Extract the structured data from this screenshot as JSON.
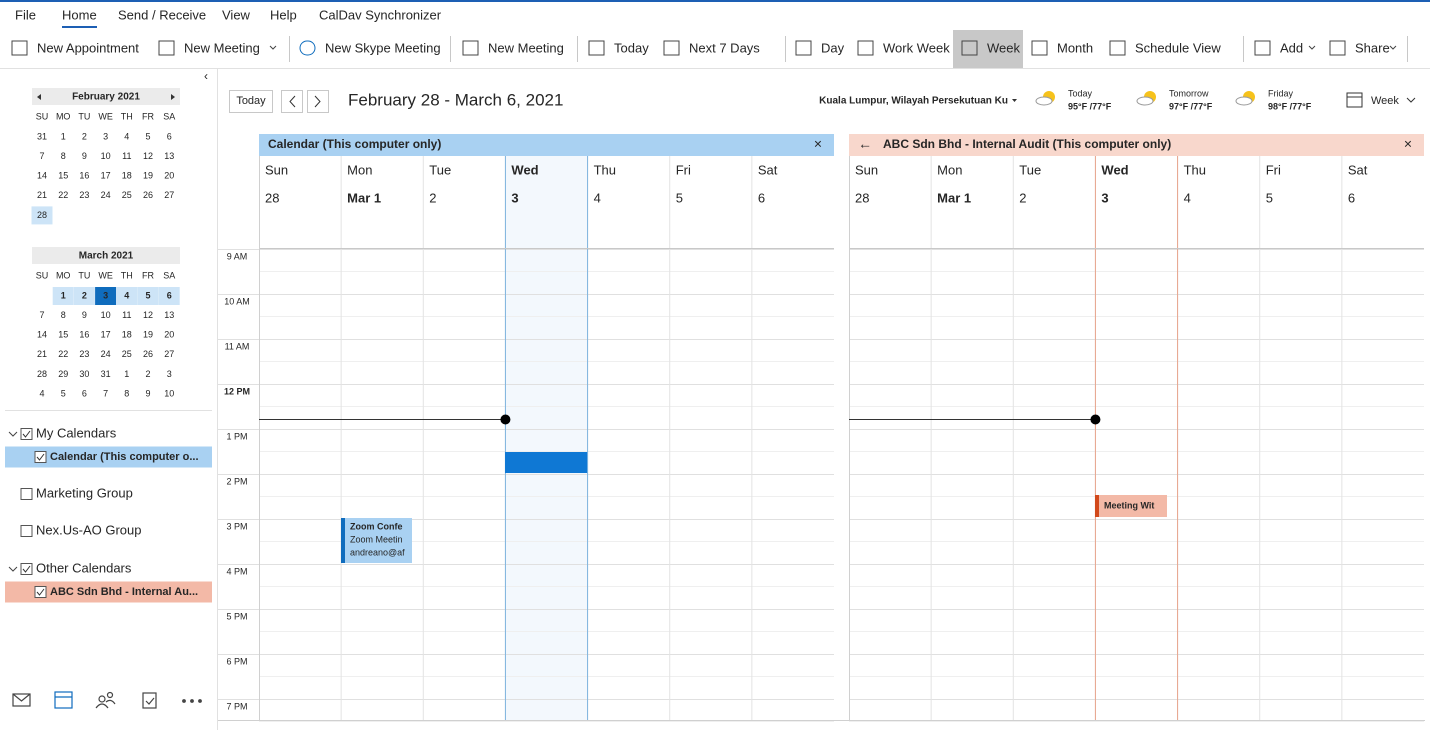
{
  "menu": {
    "tabs": [
      "File",
      "Home",
      "Send / Receive",
      "View",
      "Help",
      "CalDav Synchronizer"
    ]
  },
  "ribbon": {
    "buttons": [
      "New Appointment",
      "New Meeting",
      "New Skype Meeting",
      "New Meeting",
      "Today",
      "Next 7 Days",
      "Day",
      "Work Week",
      "Week",
      "Month",
      "Schedule View",
      "Add",
      "Share"
    ]
  },
  "mini_calendars": [
    {
      "title": "February 2021",
      "weekdays": [
        "SU",
        "MO",
        "TU",
        "WE",
        "TH",
        "FR",
        "SA"
      ],
      "weeks": [
        [
          31,
          1,
          2,
          3,
          4,
          5,
          6
        ],
        [
          7,
          8,
          9,
          10,
          11,
          12,
          13
        ],
        [
          14,
          15,
          16,
          17,
          18,
          19,
          20
        ],
        [
          21,
          22,
          23,
          24,
          25,
          26,
          27
        ],
        [
          28
        ]
      ]
    },
    {
      "title": "March 2021",
      "weekdays": [
        "SU",
        "MO",
        "TU",
        "WE",
        "TH",
        "FR",
        "SA"
      ],
      "weeks": [
        [
          null,
          1,
          2,
          3,
          4,
          5,
          6
        ],
        [
          7,
          8,
          9,
          10,
          11,
          12,
          13
        ],
        [
          14,
          15,
          16,
          17,
          18,
          19,
          20
        ],
        [
          21,
          22,
          23,
          24,
          25,
          26,
          27
        ],
        [
          28,
          29,
          30,
          31,
          1,
          2,
          3
        ],
        [
          4,
          5,
          6,
          7,
          8,
          9,
          10
        ]
      ]
    }
  ],
  "folders": [
    {
      "label": "My Calendars",
      "checked": true,
      "group": true
    },
    {
      "label": "Calendar (This computer o...",
      "checked": true,
      "selected": "#a9d1f2"
    },
    {
      "label": "Marketing Group",
      "checked": false
    },
    {
      "label": "Nex.Us-AO Group",
      "checked": false
    },
    {
      "label": "Other Calendars",
      "checked": true,
      "group": true
    },
    {
      "label": "ABC Sdn Bhd - Internal Au...",
      "checked": true,
      "selected": "#f3b9a7"
    }
  ],
  "toolbar": {
    "today": "Today",
    "range": "February 28 - March 6, 2021",
    "location": "Kuala Lumpur, Wilayah Persekutuan Ku",
    "weather": [
      {
        "day": "Today",
        "temps": "95°F /77°F"
      },
      {
        "day": "Tomorrow",
        "temps": "97°F /77°F"
      },
      {
        "day": "Friday",
        "temps": "98°F /77°F"
      }
    ],
    "view": "Week"
  },
  "panes": [
    {
      "title": "Calendar (This computer only)",
      "days": [
        "Sun",
        "Mon",
        "Tue",
        "Wed",
        "Thu",
        "Fri",
        "Sat"
      ],
      "dates": [
        28,
        "Mar 1",
        2,
        3,
        4,
        5,
        6
      ],
      "color": "#a9d1f2",
      "accent": "#7fb5e0"
    },
    {
      "title": "ABC Sdn Bhd - Internal Audit  (This computer only)",
      "days": [
        "Sun",
        "Mon",
        "Tue",
        "Wed",
        "Thu",
        "Fri",
        "Sat"
      ],
      "dates": [
        28,
        "Mar 1",
        2,
        3,
        4,
        5,
        6
      ],
      "color": "#f8d7cc",
      "accent": "#e8a58d"
    }
  ],
  "times": [
    "9 AM",
    "10 AM",
    "11 AM",
    "12 PM",
    "1 PM",
    "2 PM",
    "3 PM",
    "4 PM",
    "5 PM",
    "6 PM",
    "7 PM"
  ],
  "events": [
    {
      "lines": [
        "Zoom Confe",
        "Zoom Meetin",
        "andreano@af"
      ]
    },
    {
      "lines": [
        "Meeting Wit"
      ]
    }
  ]
}
